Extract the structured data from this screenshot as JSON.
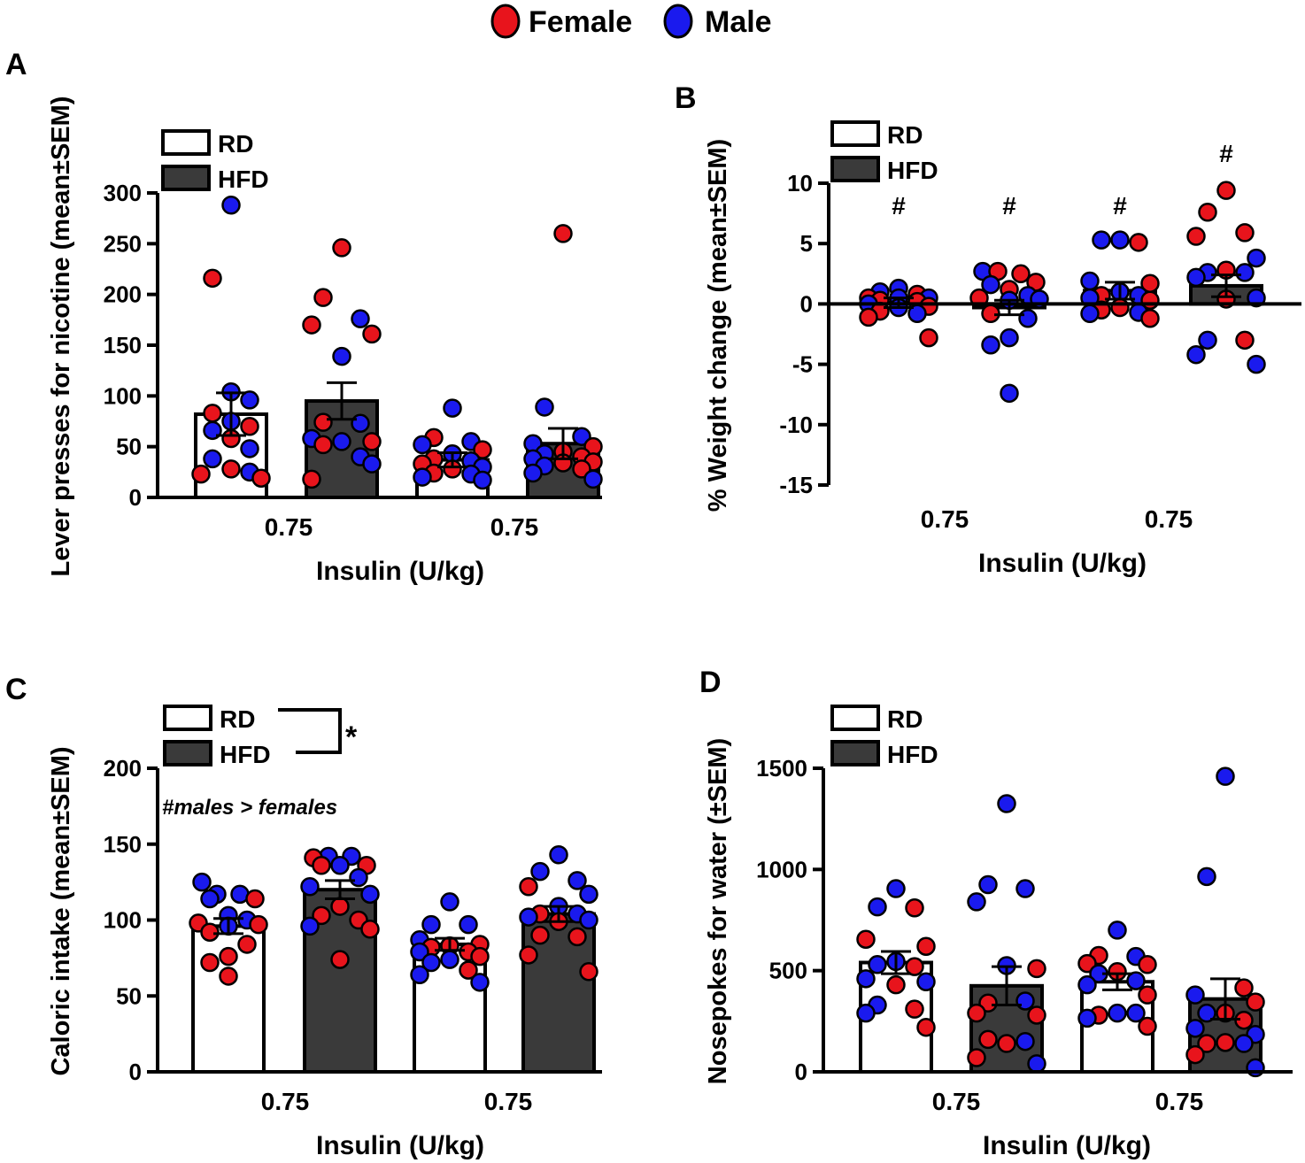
{
  "legend_sex": [
    {
      "label": "Female",
      "color": "#e8141c"
    },
    {
      "label": "Male",
      "color": "#1a1aee"
    }
  ],
  "colors": {
    "rd": "#ffffff",
    "hfd": "#3a3a3a",
    "female": "#e8141c",
    "male": "#1a1aee"
  },
  "chart_data": [
    {
      "panel": "A",
      "type": "bar",
      "ylabel": "Lever presses for nicotine (mean±SEM)",
      "xlabel": "Insulin (U/kg)",
      "ylim": [
        0,
        300
      ],
      "yticks": [
        0,
        50,
        100,
        150,
        200,
        250,
        300
      ],
      "xticklabels": [
        "0.75",
        "0.75"
      ],
      "legend": [
        "RD",
        "HFD"
      ],
      "bars": [
        {
          "group": "RD",
          "mean": 82,
          "sem": 21
        },
        {
          "group": "HFD",
          "mean": 95,
          "sem": 18
        },
        {
          "group": "RD",
          "mean": 37,
          "sem": 7
        },
        {
          "group": "HFD",
          "mean": 53,
          "sem": 15
        }
      ],
      "points": [
        [
          [
            "m",
            288
          ],
          [
            "f",
            216
          ],
          [
            "m",
            104
          ],
          [
            "m",
            96
          ],
          [
            "f",
            83
          ],
          [
            "m",
            75
          ],
          [
            "f",
            70
          ],
          [
            "m",
            66
          ],
          [
            "f",
            58
          ],
          [
            "m",
            48
          ],
          [
            "m",
            38
          ],
          [
            "f",
            28
          ],
          [
            "m",
            25
          ],
          [
            "f",
            23
          ],
          [
            "f",
            19
          ]
        ],
        [
          [
            "f",
            246
          ],
          [
            "f",
            197
          ],
          [
            "m",
            176
          ],
          [
            "f",
            170
          ],
          [
            "f",
            161
          ],
          [
            "m",
            139
          ],
          [
            "f",
            74
          ],
          [
            "m",
            73
          ],
          [
            "m",
            58
          ],
          [
            "f",
            55
          ],
          [
            "m",
            55
          ],
          [
            "f",
            52
          ],
          [
            "m",
            40
          ],
          [
            "m",
            33
          ],
          [
            "f",
            18
          ]
        ],
        [
          [
            "m",
            88
          ],
          [
            "f",
            59
          ],
          [
            "m",
            55
          ],
          [
            "m",
            52
          ],
          [
            "f",
            47
          ],
          [
            "m",
            43
          ],
          [
            "f",
            38
          ],
          [
            "m",
            36
          ],
          [
            "f",
            33
          ],
          [
            "m",
            30
          ],
          [
            "f",
            28
          ],
          [
            "f",
            24
          ],
          [
            "m",
            23
          ],
          [
            "m",
            20
          ],
          [
            "m",
            17
          ]
        ],
        [
          [
            "f",
            260
          ],
          [
            "m",
            89
          ],
          [
            "m",
            60
          ],
          [
            "m",
            53
          ],
          [
            "f",
            50
          ],
          [
            "f",
            45
          ],
          [
            "m",
            43
          ],
          [
            "f",
            40
          ],
          [
            "m",
            38
          ],
          [
            "f",
            35
          ],
          [
            "f",
            34
          ],
          [
            "m",
            31
          ],
          [
            "f",
            28
          ],
          [
            "m",
            24
          ],
          [
            "m",
            18
          ]
        ]
      ]
    },
    {
      "panel": "B",
      "type": "bar",
      "ylabel": "% Weight change (mean±SEM)",
      "xlabel": "Insulin (U/kg)",
      "ylim": [
        -15,
        10
      ],
      "yticks": [
        -15,
        -10,
        -5,
        0,
        5,
        10
      ],
      "xticklabels": [
        "0.75",
        "0.75"
      ],
      "legend": [
        "RD",
        "HFD"
      ],
      "annotations": [
        "#",
        "#",
        "#",
        "#"
      ],
      "bars": [
        {
          "group": "RD",
          "mean": 0.1,
          "sem": 0.4
        },
        {
          "group": "HFD",
          "mean": -0.3,
          "sem": 0.6
        },
        {
          "group": "RD",
          "mean": 1.1,
          "sem": 0.7
        },
        {
          "group": "HFD",
          "mean": 1.5,
          "sem": 0.9
        }
      ],
      "points": [
        [
          [
            "m",
            1.3
          ],
          [
            "m",
            1.0
          ],
          [
            "f",
            0.8
          ],
          [
            "f",
            0.5
          ],
          [
            "m",
            0.5
          ],
          [
            "m",
            0.5
          ],
          [
            "f",
            0.3
          ],
          [
            "f",
            0.2
          ],
          [
            "m",
            0.0
          ],
          [
            "f",
            -0.2
          ],
          [
            "m",
            -0.3
          ],
          [
            "f",
            -0.6
          ],
          [
            "m",
            -0.8
          ],
          [
            "f",
            -1.1
          ],
          [
            "f",
            -2.8
          ]
        ],
        [
          [
            "m",
            2.7
          ],
          [
            "f",
            2.7
          ],
          [
            "f",
            2.5
          ],
          [
            "f",
            1.8
          ],
          [
            "m",
            1.6
          ],
          [
            "f",
            1.2
          ],
          [
            "m",
            0.7
          ],
          [
            "f",
            0.5
          ],
          [
            "m",
            0.4
          ],
          [
            "m",
            0.3
          ],
          [
            "f",
            -0.8
          ],
          [
            "m",
            -1.2
          ],
          [
            "m",
            -2.8
          ],
          [
            "m",
            -3.4
          ],
          [
            "m",
            -7.4
          ]
        ],
        [
          [
            "m",
            5.3
          ],
          [
            "m",
            5.3
          ],
          [
            "f",
            5.1
          ],
          [
            "m",
            1.9
          ],
          [
            "f",
            1.7
          ],
          [
            "m",
            1.0
          ],
          [
            "f",
            0.7
          ],
          [
            "m",
            0.7
          ],
          [
            "m",
            0.5
          ],
          [
            "f",
            0.3
          ],
          [
            "f",
            -0.3
          ],
          [
            "f",
            -0.5
          ],
          [
            "m",
            -0.7
          ],
          [
            "m",
            -0.8
          ],
          [
            "f",
            -1.2
          ]
        ],
        [
          [
            "f",
            9.4
          ],
          [
            "f",
            7.6
          ],
          [
            "f",
            5.9
          ],
          [
            "f",
            5.6
          ],
          [
            "m",
            3.8
          ],
          [
            "f",
            2.8
          ],
          [
            "m",
            2.6
          ],
          [
            "m",
            2.6
          ],
          [
            "m",
            2.2
          ],
          [
            "m",
            0.5
          ],
          [
            "f",
            0.4
          ],
          [
            "m",
            -3.0
          ],
          [
            "f",
            -3.0
          ],
          [
            "m",
            -4.2
          ],
          [
            "m",
            -5.0
          ]
        ]
      ]
    },
    {
      "panel": "C",
      "type": "bar",
      "ylabel": "Caloric intake (mean±SEM)",
      "xlabel": "Insulin (U/kg)",
      "ylim": [
        0,
        200
      ],
      "yticks": [
        0,
        50,
        100,
        150,
        200
      ],
      "xticklabels": [
        "0.75",
        "0.75"
      ],
      "legend": [
        "RD",
        "HFD"
      ],
      "significance": "*",
      "note": "#males > females",
      "bars": [
        {
          "group": "RD",
          "mean": 96,
          "sem": 5
        },
        {
          "group": "HFD",
          "mean": 120,
          "sem": 6
        },
        {
          "group": "RD",
          "mean": 84,
          "sem": 4
        },
        {
          "group": "HFD",
          "mean": 104,
          "sem": 5
        }
      ],
      "points": [
        [
          [
            "m",
            125
          ],
          [
            "m",
            117
          ],
          [
            "m",
            117
          ],
          [
            "f",
            114
          ],
          [
            "m",
            114
          ],
          [
            "m",
            103
          ],
          [
            "m",
            100
          ],
          [
            "f",
            98
          ],
          [
            "f",
            97
          ],
          [
            "m",
            96
          ],
          [
            "f",
            92
          ],
          [
            "f",
            84
          ],
          [
            "f",
            76
          ],
          [
            "f",
            72
          ],
          [
            "f",
            63
          ]
        ],
        [
          [
            "m",
            142
          ],
          [
            "m",
            142
          ],
          [
            "f",
            141
          ],
          [
            "f",
            136
          ],
          [
            "f",
            136
          ],
          [
            "m",
            136
          ],
          [
            "m",
            128
          ],
          [
            "m",
            122
          ],
          [
            "m",
            117
          ],
          [
            "f",
            109
          ],
          [
            "f",
            103
          ],
          [
            "f",
            100
          ],
          [
            "m",
            96
          ],
          [
            "f",
            94
          ],
          [
            "f",
            74
          ]
        ],
        [
          [
            "m",
            112
          ],
          [
            "m",
            97
          ],
          [
            "m",
            97
          ],
          [
            "m",
            87
          ],
          [
            "f",
            84
          ],
          [
            "f",
            83
          ],
          [
            "f",
            82
          ],
          [
            "f",
            79
          ],
          [
            "m",
            79
          ],
          [
            "f",
            76
          ],
          [
            "m",
            74
          ],
          [
            "m",
            72
          ],
          [
            "f",
            67
          ],
          [
            "m",
            64
          ],
          [
            "m",
            59
          ]
        ],
        [
          [
            "m",
            143
          ],
          [
            "m",
            132
          ],
          [
            "m",
            126
          ],
          [
            "f",
            122
          ],
          [
            "m",
            117
          ],
          [
            "m",
            109
          ],
          [
            "f",
            104
          ],
          [
            "m",
            104
          ],
          [
            "m",
            102
          ],
          [
            "m",
            100
          ],
          [
            "f",
            99
          ],
          [
            "f",
            90
          ],
          [
            "f",
            89
          ],
          [
            "f",
            77
          ],
          [
            "f",
            66
          ]
        ]
      ]
    },
    {
      "panel": "D",
      "type": "bar",
      "ylabel": "Nosepokes for water (±SEM)",
      "xlabel": "Insulin (U/kg)",
      "ylim": [
        0,
        1500
      ],
      "yticks": [
        0,
        500,
        1000,
        1500
      ],
      "xticklabels": [
        "0.75",
        "0.75"
      ],
      "legend": [
        "RD",
        "HFD"
      ],
      "bars": [
        {
          "group": "RD",
          "mean": 540,
          "sem": 55
        },
        {
          "group": "HFD",
          "mean": 425,
          "sem": 95
        },
        {
          "group": "RD",
          "mean": 445,
          "sem": 40
        },
        {
          "group": "HFD",
          "mean": 360,
          "sem": 100
        }
      ],
      "points": [
        [
          [
            "m",
            905
          ],
          [
            "m",
            815
          ],
          [
            "f",
            810
          ],
          [
            "f",
            655
          ],
          [
            "f",
            620
          ],
          [
            "m",
            545
          ],
          [
            "m",
            530
          ],
          [
            "f",
            520
          ],
          [
            "m",
            460
          ],
          [
            "m",
            445
          ],
          [
            "f",
            430
          ],
          [
            "m",
            330
          ],
          [
            "f",
            310
          ],
          [
            "m",
            290
          ],
          [
            "f",
            220
          ]
        ],
        [
          [
            "m",
            1325
          ],
          [
            "m",
            925
          ],
          [
            "m",
            905
          ],
          [
            "m",
            840
          ],
          [
            "f",
            510
          ],
          [
            "m",
            525
          ],
          [
            "f",
            340
          ],
          [
            "m",
            350
          ],
          [
            "f",
            290
          ],
          [
            "f",
            280
          ],
          [
            "f",
            140
          ],
          [
            "f",
            160
          ],
          [
            "m",
            150
          ],
          [
            "f",
            70
          ],
          [
            "m",
            40
          ]
        ],
        [
          [
            "m",
            700
          ],
          [
            "f",
            575
          ],
          [
            "m",
            570
          ],
          [
            "f",
            535
          ],
          [
            "f",
            530
          ],
          [
            "f",
            495
          ],
          [
            "m",
            485
          ],
          [
            "m",
            450
          ],
          [
            "m",
            430
          ],
          [
            "f",
            380
          ],
          [
            "m",
            290
          ],
          [
            "f",
            280
          ],
          [
            "m",
            290
          ],
          [
            "m",
            265
          ],
          [
            "f",
            225
          ]
        ],
        [
          [
            "m",
            1460
          ],
          [
            "m",
            965
          ],
          [
            "f",
            415
          ],
          [
            "m",
            380
          ],
          [
            "f",
            345
          ],
          [
            "f",
            290
          ],
          [
            "m",
            290
          ],
          [
            "f",
            255
          ],
          [
            "m",
            215
          ],
          [
            "m",
            185
          ],
          [
            "f",
            145
          ],
          [
            "f",
            140
          ],
          [
            "m",
            140
          ],
          [
            "f",
            85
          ],
          [
            "m",
            20
          ]
        ]
      ]
    }
  ]
}
